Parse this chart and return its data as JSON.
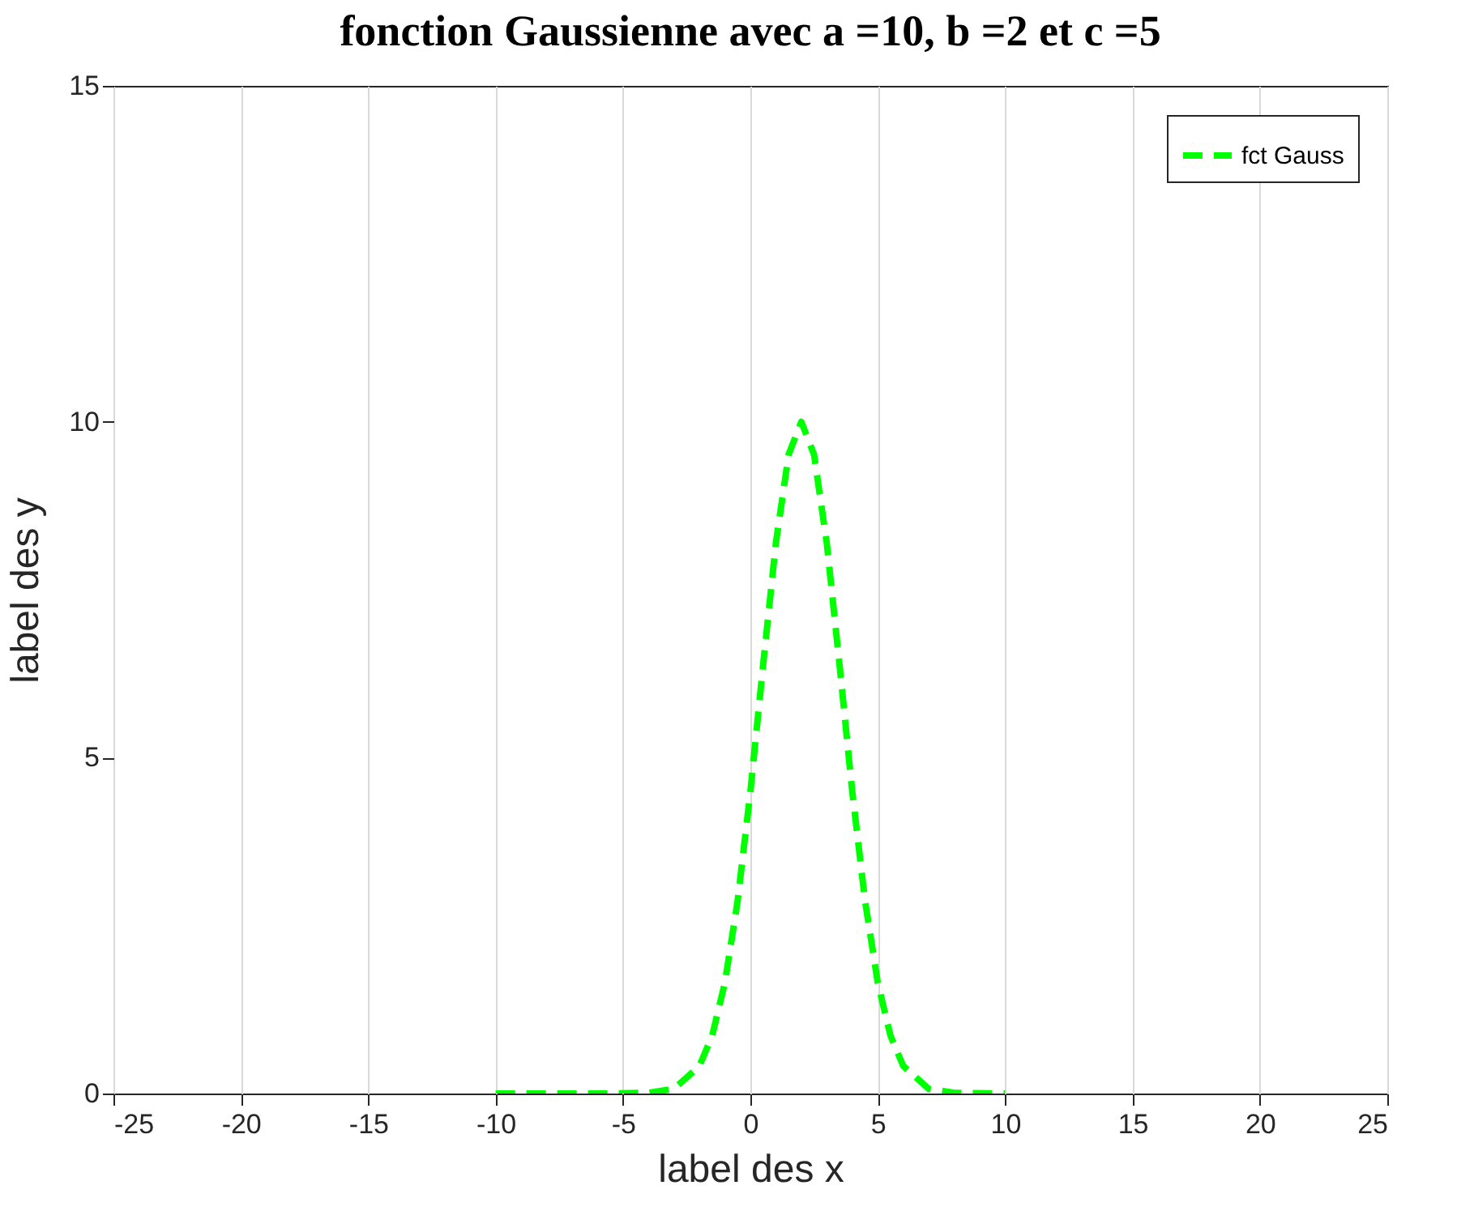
{
  "chart_data": {
    "type": "line",
    "title": "fonction Gaussienne avec a =10, b =2 et c =5",
    "xlabel": "label des x",
    "ylabel": "label des y",
    "series": [
      {
        "name": "fct Gauss",
        "color": "#00ff00",
        "x": [
          -10,
          -8,
          -6,
          -4,
          -3,
          -2,
          -1.5,
          -1,
          -0.5,
          0,
          0.5,
          1,
          1.5,
          2,
          2.5,
          3,
          3.5,
          4,
          4.5,
          5,
          5.5,
          6,
          7,
          8,
          10
        ],
        "values": [
          0,
          0,
          0,
          0.01,
          0.07,
          0.41,
          0.86,
          1.65,
          2.87,
          4.49,
          6.38,
          8.19,
          9.51,
          10,
          9.51,
          8.19,
          6.38,
          4.49,
          2.87,
          1.65,
          0.86,
          0.41,
          0.07,
          0.01,
          0
        ]
      }
    ],
    "xlim": [
      -25,
      25
    ],
    "xticks": [
      -25,
      -20,
      -15,
      -10,
      -5,
      0,
      5,
      10,
      15,
      20,
      25
    ],
    "ylim": [
      0,
      15
    ],
    "yticks": [
      0,
      5,
      10,
      15
    ],
    "grid": "x",
    "legend": "top right",
    "line_style": "dashed",
    "marker": "none"
  }
}
